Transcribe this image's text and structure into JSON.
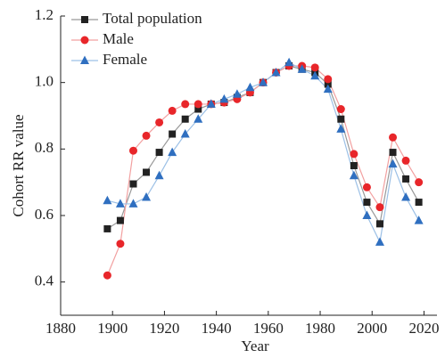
{
  "chart_data": {
    "type": "line",
    "xlabel": "Year",
    "ylabel": "Cohort RR value",
    "x": [
      1898,
      1903,
      1908,
      1913,
      1918,
      1923,
      1928,
      1933,
      1938,
      1943,
      1948,
      1953,
      1958,
      1963,
      1968,
      1973,
      1978,
      1983,
      1988,
      1993,
      1998,
      2003,
      2008,
      2013,
      2018
    ],
    "series": [
      {
        "name": "Total population",
        "color": "#222222",
        "line_color": "#999999",
        "marker": "square",
        "values": [
          0.56,
          0.585,
          0.695,
          0.73,
          0.79,
          0.845,
          0.89,
          0.92,
          0.935,
          0.94,
          0.955,
          0.97,
          1.0,
          1.03,
          1.05,
          1.04,
          1.03,
          0.995,
          0.89,
          0.75,
          0.64,
          0.575,
          0.79,
          0.71,
          0.64
        ]
      },
      {
        "name": "Male",
        "color": "#e8262a",
        "line_color": "#f2a0a0",
        "marker": "circle",
        "values": [
          0.42,
          0.515,
          0.795,
          0.84,
          0.88,
          0.915,
          0.935,
          0.935,
          0.935,
          0.94,
          0.95,
          0.97,
          1.0,
          1.03,
          1.05,
          1.05,
          1.045,
          1.01,
          0.92,
          0.785,
          0.685,
          0.625,
          0.835,
          0.765,
          0.7
        ]
      },
      {
        "name": "Female",
        "color": "#2f6fc0",
        "line_color": "#9cc0e6",
        "marker": "triangle",
        "values": [
          0.645,
          0.635,
          0.635,
          0.655,
          0.72,
          0.79,
          0.845,
          0.89,
          0.935,
          0.95,
          0.965,
          0.985,
          1.0,
          1.03,
          1.06,
          1.04,
          1.02,
          0.98,
          0.86,
          0.72,
          0.6,
          0.52,
          0.755,
          0.655,
          0.585
        ]
      }
    ],
    "xlim": [
      1880,
      2025
    ],
    "xticks": [
      1880,
      1900,
      1920,
      1940,
      1960,
      1980,
      2000,
      2020
    ],
    "ylim": [
      0.3,
      1.2
    ],
    "yticks": [
      0.4,
      0.6,
      0.8,
      {
        "value": 1,
        "label": "1.0"
      },
      1.2
    ],
    "legend": "upper left"
  }
}
